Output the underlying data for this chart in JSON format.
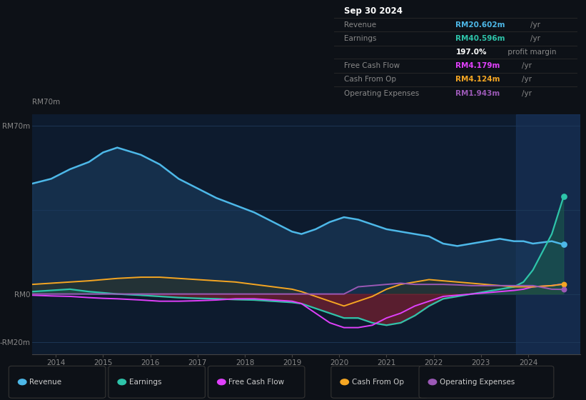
{
  "bg_color": "#0d1117",
  "plot_bg_color": "#0d1b2e",
  "grid_color": "#1e3a5a",
  "ylim": [
    -25,
    75
  ],
  "xlim": [
    2013.5,
    2025.1
  ],
  "x_tick_years": [
    2014,
    2015,
    2016,
    2017,
    2018,
    2019,
    2020,
    2021,
    2022,
    2023,
    2024
  ],
  "highlight_x_start": 2023.75,
  "highlight_x_end": 2025.1,
  "x_years": [
    2013.5,
    2013.9,
    2014.3,
    2014.7,
    2015.0,
    2015.3,
    2015.8,
    2016.2,
    2016.6,
    2017.0,
    2017.4,
    2017.8,
    2018.2,
    2018.6,
    2019.0,
    2019.2,
    2019.5,
    2019.8,
    2020.1,
    2020.4,
    2020.7,
    2021.0,
    2021.3,
    2021.6,
    2021.9,
    2022.2,
    2022.5,
    2022.8,
    2023.1,
    2023.4,
    2023.7,
    2023.9,
    2024.1,
    2024.5,
    2024.75
  ],
  "revenue": [
    46,
    48,
    52,
    55,
    59,
    61,
    58,
    54,
    48,
    44,
    40,
    37,
    34,
    30,
    26,
    25,
    27,
    30,
    32,
    31,
    29,
    27,
    26,
    25,
    24,
    21,
    20,
    21,
    22,
    23,
    22,
    22,
    21,
    22,
    20.6
  ],
  "earnings": [
    1,
    1.5,
    2,
    1,
    0.5,
    0,
    -0.5,
    -1,
    -1.5,
    -1.8,
    -2,
    -2.3,
    -2.5,
    -3,
    -3.5,
    -4,
    -6,
    -8,
    -10,
    -10,
    -12,
    -13,
    -12,
    -9,
    -5,
    -2,
    -1,
    0,
    1,
    2,
    3,
    5,
    10,
    25,
    40.6
  ],
  "free_cash_flow": [
    -0.5,
    -0.8,
    -1,
    -1.5,
    -1.8,
    -2,
    -2.5,
    -3,
    -3,
    -2.8,
    -2.5,
    -2,
    -2,
    -2.5,
    -3,
    -4,
    -8,
    -12,
    -14,
    -14,
    -13,
    -10,
    -8,
    -5,
    -3,
    -1,
    -0.5,
    0,
    0.5,
    1,
    1.5,
    2,
    3,
    3.5,
    4.2
  ],
  "cash_from_op": [
    4,
    4.5,
    5,
    5.5,
    6,
    6.5,
    7,
    7,
    6.5,
    6,
    5.5,
    5,
    4,
    3,
    2,
    1,
    -1,
    -3,
    -5,
    -3,
    -1,
    2,
    4,
    5,
    6,
    5.5,
    5,
    4.5,
    4,
    3.5,
    3,
    3,
    3,
    3.5,
    4.1
  ],
  "operating_expenses": [
    0,
    0,
    0,
    0,
    0,
    0,
    0,
    0,
    0,
    0,
    0,
    0,
    0,
    0,
    0,
    0,
    0,
    0,
    0,
    3,
    3.5,
    4,
    4.5,
    4,
    4,
    4,
    3.8,
    3.5,
    3.5,
    3.5,
    3.5,
    3.5,
    3.5,
    2,
    1.9
  ],
  "revenue_color": "#4db8e8",
  "earnings_color": "#2ec4aa",
  "free_cash_flow_color": "#e040fb",
  "cash_from_op_color": "#f5a623",
  "operating_expenses_color": "#9b59b6",
  "revenue_fill_color": "#1a3a5c",
  "earnings_fill_neg_color": "#7a2030",
  "earnings_fill_pos_color": "#1a5a4a",
  "cfo_fill_color": "#3a3010",
  "legend_labels": [
    "Revenue",
    "Earnings",
    "Free Cash Flow",
    "Cash From Op",
    "Operating Expenses"
  ],
  "legend_colors": [
    "#4db8e8",
    "#2ec4aa",
    "#e040fb",
    "#f5a623",
    "#9b59b6"
  ],
  "info_box": {
    "date": "Sep 30 2024",
    "rows": [
      {
        "label": "Revenue",
        "value": "RM20.602m",
        "unit": "/yr",
        "color": "#4db8e8"
      },
      {
        "label": "Earnings",
        "value": "RM40.596m",
        "unit": "/yr",
        "color": "#2ec4aa"
      },
      {
        "label": "",
        "value": "197.0%",
        "unit": " profit margin",
        "color": "#ffffff"
      },
      {
        "label": "Free Cash Flow",
        "value": "RM4.179m",
        "unit": "/yr",
        "color": "#e040fb"
      },
      {
        "label": "Cash From Op",
        "value": "RM4.124m",
        "unit": "/yr",
        "color": "#f5a623"
      },
      {
        "label": "Operating Expenses",
        "value": "RM1.943m",
        "unit": "/yr",
        "color": "#9b59b6"
      }
    ]
  }
}
